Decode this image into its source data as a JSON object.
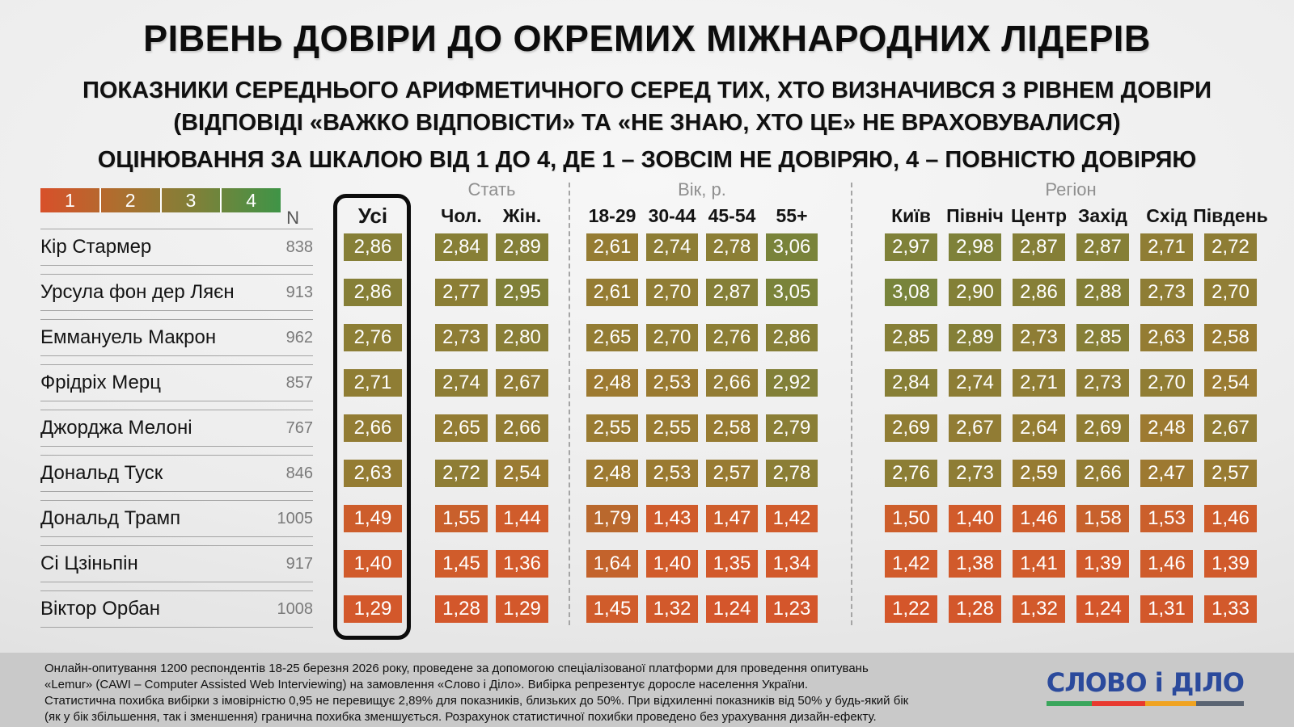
{
  "page": {
    "title": "РІВЕНЬ ДОВІРИ ДО ОКРЕМИХ МІЖНАРОДНИХ ЛІДЕРІВ",
    "subtitle_line1": "ПОКАЗНИКИ СЕРЕДНЬОГО АРИФМЕТИЧНОГО СЕРЕД ТИХ, ХТО ВИЗНАЧИВСЯ З РІВНЕМ ДОВІРИ",
    "subtitle_line2": "(ВІДПОВІДІ «ВАЖКО ВІДПОВІСТИ» ТА «НЕ ЗНАЮ, ХТО ЦЕ» НЕ ВРАХОВУВАЛИСЯ)",
    "subtitle_line3": "ОЦІНЮВАННЯ ЗА ШКАЛОЮ ВІД 1 ДО 4, ДЕ 1 – ЗОВСІМ НЕ ДОВІРЯЮ, 4 – ПОВНІСТЮ ДОВІРЯЮ"
  },
  "legend": {
    "labels": [
      "1",
      "2",
      "3",
      "4"
    ],
    "gradient": [
      "#d8502a",
      "#ab702f",
      "#7d8139",
      "#3f9447"
    ]
  },
  "chart_data": {
    "type": "heatmap",
    "title": "РІВЕНЬ ДОВІРИ ДО ОКРЕМИХ МІЖНАРОДНИХ ЛІДЕРІВ",
    "value_scale": {
      "min": 1,
      "max": 4,
      "min_meaning": "зовсім не довіряю",
      "max_meaning": "повністю довіряю"
    },
    "n_label": "N",
    "column_groups": [
      {
        "label": "",
        "name": "usi",
        "columns": [
          "Усі"
        ]
      },
      {
        "label": "Стать",
        "name": "gender",
        "columns": [
          "Чол.",
          "Жін."
        ]
      },
      {
        "label": "Вік, р.",
        "name": "age",
        "columns": [
          "18-29",
          "30-44",
          "45-54",
          "55+"
        ]
      },
      {
        "label": "Регіон",
        "name": "region",
        "columns": [
          "Київ",
          "Північ",
          "Центр",
          "Захід",
          "Схід",
          "Південь"
        ]
      }
    ],
    "rows": [
      {
        "name": "Кір Стармер",
        "n": "838",
        "values": [
          2.86,
          2.84,
          2.89,
          2.61,
          2.74,
          2.78,
          3.06,
          2.97,
          2.98,
          2.87,
          2.87,
          2.71,
          2.72
        ]
      },
      {
        "name": "Урсула фон дер Ляєн",
        "n": "913",
        "values": [
          2.86,
          2.77,
          2.95,
          2.61,
          2.7,
          2.87,
          3.05,
          3.08,
          2.9,
          2.86,
          2.88,
          2.73,
          2.7
        ]
      },
      {
        "name": "Еммануель Макрон",
        "n": "962",
        "values": [
          2.76,
          2.73,
          2.8,
          2.65,
          2.7,
          2.76,
          2.86,
          2.85,
          2.89,
          2.73,
          2.85,
          2.63,
          2.58
        ]
      },
      {
        "name": "Фрідріх Мерц",
        "n": "857",
        "values": [
          2.71,
          2.74,
          2.67,
          2.48,
          2.53,
          2.66,
          2.92,
          2.84,
          2.74,
          2.71,
          2.73,
          2.7,
          2.54
        ]
      },
      {
        "name": "Джорджа Мелоні",
        "n": "767",
        "values": [
          2.66,
          2.65,
          2.66,
          2.55,
          2.55,
          2.58,
          2.79,
          2.69,
          2.67,
          2.64,
          2.69,
          2.48,
          2.67
        ]
      },
      {
        "name": "Дональд Туск",
        "n": "846",
        "values": [
          2.63,
          2.72,
          2.54,
          2.48,
          2.53,
          2.57,
          2.78,
          2.76,
          2.73,
          2.59,
          2.66,
          2.47,
          2.57
        ]
      },
      {
        "name": "Дональд Трамп",
        "n": "1005",
        "values": [
          1.49,
          1.55,
          1.44,
          1.79,
          1.43,
          1.47,
          1.42,
          1.5,
          1.4,
          1.46,
          1.58,
          1.53,
          1.46
        ]
      },
      {
        "name": "Сі Цзіньпін",
        "n": "917",
        "values": [
          1.4,
          1.45,
          1.36,
          1.64,
          1.4,
          1.35,
          1.34,
          1.42,
          1.38,
          1.41,
          1.39,
          1.46,
          1.39
        ]
      },
      {
        "name": "Віктор Орбан",
        "n": "1008",
        "values": [
          1.29,
          1.28,
          1.29,
          1.45,
          1.32,
          1.24,
          1.23,
          1.22,
          1.28,
          1.32,
          1.24,
          1.31,
          1.33
        ]
      }
    ],
    "color_stops": [
      [
        1.0,
        "#d8502a"
      ],
      [
        1.45,
        "#d05c2b"
      ],
      [
        2.0,
        "#ab702f"
      ],
      [
        2.5,
        "#9c7a31"
      ],
      [
        3.0,
        "#7d8139"
      ],
      [
        3.3,
        "#698c3f"
      ],
      [
        4.0,
        "#3f9447"
      ]
    ]
  },
  "footer": {
    "lines": [
      "Онлайн-опитування 1200 респондентів 18-25 березня 2026 року, проведене за допомогою спеціалізованої платформи для проведення опитувань",
      "«Lemur» (CAWI – Computer Assisted Web Interviewing) на замовлення «Слово і Діло». Вибірка репрезентує доросле населення України.",
      "Статистична похибка вибірки з імовірністю 0,95 не перевищує 2,89% для показників, близьких до 50%. При відхиленні показників від 50% у будь-який бік",
      "(як у бік збільшення, так і зменшення) гранична похибка зменшується. Розрахунок статистичної похибки проведено без урахування дизайн-ефекту."
    ],
    "logo_text": "СЛОВО і ДІЛО",
    "logo_bar_colors": [
      "#3aa65c",
      "#e8392f",
      "#f0a321",
      "#5a6472"
    ]
  }
}
